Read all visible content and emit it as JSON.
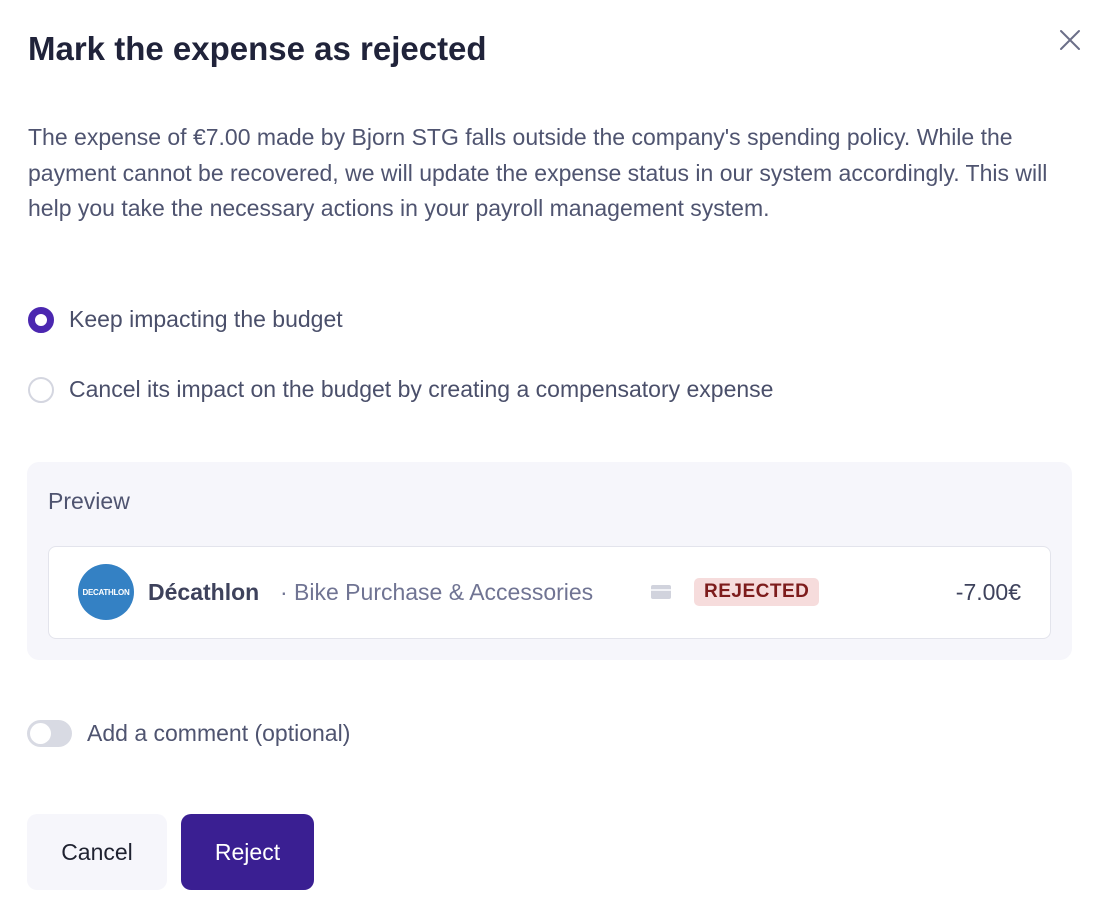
{
  "dialog": {
    "title": "Mark the expense as rejected",
    "description": "The expense of €7.00 made by Bjorn STG falls outside the company's spending policy. While the payment cannot be recovered, we will update the expense status in our system accordingly. This will help you take the necessary actions in your payroll management system.",
    "options": [
      {
        "label": "Keep impacting the budget",
        "selected": true
      },
      {
        "label": "Cancel its impact on the budget by creating a compensatory expense",
        "selected": false
      }
    ],
    "preview": {
      "label": "Preview",
      "logo_text": "DECATHLON",
      "merchant": "Décathlon",
      "category": "· Bike Purchase & Accessories",
      "icon": "credit-card-icon",
      "status": "REJECTED",
      "amount": "-7.00€"
    },
    "comment_toggle": {
      "label": "Add a comment (optional)",
      "on": false
    },
    "cancel_label": "Cancel",
    "reject_label": "Reject",
    "colors": {
      "primary": "#3a1f92",
      "radio": "#4b27b0",
      "badge_bg": "#f6dcdc",
      "badge_text": "#7d1c1c"
    }
  }
}
